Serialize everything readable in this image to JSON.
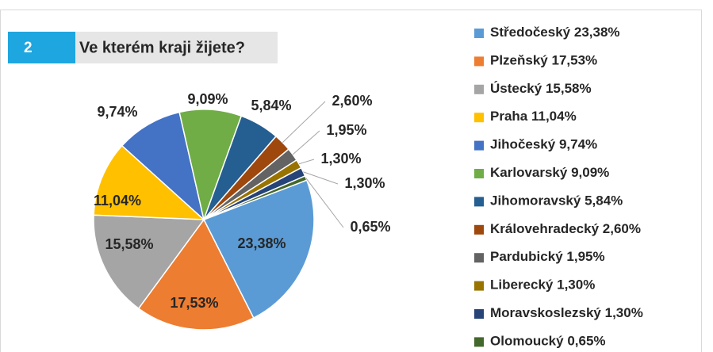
{
  "chart_data": {
    "type": "pie",
    "question_number": "2",
    "title": "Ve kterém kraji žijete?",
    "categories": [
      "Středočeský",
      "Plzeňský",
      "Ústecký",
      "Praha",
      "Jihočeský",
      "Karlovarský",
      "Jihomoravský",
      "Královehradecký",
      "Pardubický",
      "Liberecký",
      "Moravskoslezský",
      "Olomoucký"
    ],
    "values": [
      23.38,
      17.53,
      15.58,
      11.04,
      9.74,
      9.09,
      5.84,
      2.6,
      1.95,
      1.3,
      1.3,
      0.65
    ],
    "value_labels": [
      "23,38%",
      "17,53%",
      "15,58%",
      "11,04%",
      "9,74%",
      "9,09%",
      "5,84%",
      "2,60%",
      "1,95%",
      "1,30%",
      "1,30%",
      "0,65%"
    ],
    "colors": [
      "#5b9bd5",
      "#ed7d31",
      "#a5a5a5",
      "#ffc000",
      "#4472c4",
      "#70ad47",
      "#255e91",
      "#9e480e",
      "#636363",
      "#997300",
      "#264478",
      "#43682b"
    ],
    "legend": "right"
  }
}
